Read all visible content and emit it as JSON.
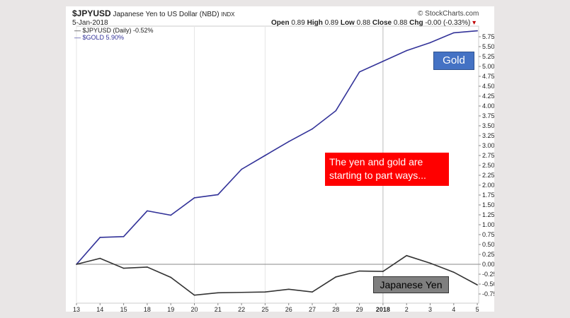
{
  "header": {
    "symbol": "$JPYUSD",
    "description": "Japanese Yen to US Dollar (NBD)",
    "exchange": "INDX",
    "date": "5-Jan-2018",
    "brand": "© StockCharts.com",
    "open_label": "Open",
    "open_value": "0.89",
    "high_label": "High",
    "high_value": "0.89",
    "low_label": "Low",
    "low_value": "0.88",
    "close_label": "Close",
    "close_value": "0.88",
    "chg_label": "Chg",
    "chg_value": "-0.00 (-0.33%)"
  },
  "legend": {
    "jpy": "$JPYUSD (Daily) -0.52%",
    "gold": "$GOLD 5.90%"
  },
  "annotations": {
    "gold": "Gold",
    "note_line1": "The yen and gold are",
    "note_line2": "starting to part ways...",
    "yen": "Japanese Yen"
  },
  "colors": {
    "gold_line": "#333399",
    "jpy_line": "#333333",
    "gold_callout": "#4472c4",
    "note_callout": "#ff0000",
    "yen_callout": "#7f7f7f"
  },
  "chart_data": {
    "type": "line",
    "categories": [
      "13",
      "14",
      "15",
      "18",
      "19",
      "20",
      "21",
      "22",
      "25",
      "26",
      "27",
      "28",
      "29",
      "2018",
      "2",
      "3",
      "4",
      "5"
    ],
    "series": [
      {
        "name": "$GOLD",
        "values": [
          0.0,
          0.68,
          0.7,
          1.35,
          1.24,
          1.68,
          1.76,
          2.4,
          2.75,
          3.1,
          3.42,
          3.88,
          4.86,
          5.13,
          5.4,
          5.6,
          5.85,
          5.9
        ]
      },
      {
        "name": "$JPYUSD",
        "values": [
          0.0,
          0.15,
          -0.1,
          -0.07,
          -0.33,
          -0.78,
          -0.72,
          -0.71,
          -0.7,
          -0.63,
          -0.7,
          -0.32,
          -0.17,
          -0.18,
          0.22,
          0.03,
          -0.2,
          -0.52
        ]
      }
    ],
    "ytick_labels": [
      "5.75%",
      "5.50%",
      "5.25%",
      "5.00%",
      "4.75%",
      "4.50%",
      "4.25%",
      "4.00%",
      "3.75%",
      "3.50%",
      "3.25%",
      "3.00%",
      "2.75%",
      "2.50%",
      "2.25%",
      "2.00%",
      "1.75%",
      "1.50%",
      "1.25%",
      "1.00%",
      "0.75%",
      "0.50%",
      "0.25%",
      "0.00%",
      "-0.25%",
      "-0.50%",
      "-0.75%"
    ],
    "ylim": [
      -0.9,
      6.0
    ],
    "bold_category": "2018",
    "grid": true,
    "legend_position": "top-left"
  }
}
